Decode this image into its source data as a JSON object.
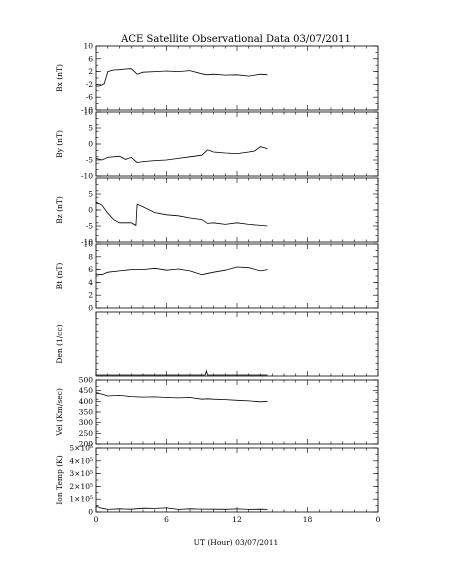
{
  "title": "ACE Satellite Observational Data   03/07/2011",
  "xlabel": "UT (Hour)  03/07/2011",
  "x_ticks": [
    "0",
    "6",
    "12",
    "18",
    "0"
  ],
  "chart_data": [
    {
      "type": "line",
      "ylabel": "Bx (nT)",
      "ylim": [
        -10,
        10
      ],
      "y_ticks": [
        "10",
        "6",
        "2",
        "-2",
        "-6",
        "-10"
      ],
      "y_tick_values": [
        10,
        6,
        2,
        -2,
        -6,
        -10
      ],
      "x": [
        0,
        0.3,
        0.7,
        1,
        1.5,
        2,
        2.5,
        3,
        3.5,
        4,
        5,
        6,
        7,
        8,
        9,
        9.5,
        10,
        11,
        12,
        13,
        14,
        14.6
      ],
      "values": [
        -2.5,
        -2.5,
        -1.8,
        2,
        2.5,
        2.6,
        2.8,
        2.9,
        1.2,
        1.8,
        2.0,
        2.2,
        2.0,
        2.3,
        1.3,
        1.0,
        1.2,
        0.9,
        1.0,
        0.6,
        1.2,
        1.0
      ]
    },
    {
      "type": "line",
      "ylabel": "By (nT)",
      "ylim": [
        -10,
        10
      ],
      "y_ticks": [
        "10",
        "5",
        "0",
        "-5",
        "-10"
      ],
      "y_tick_values": [
        10,
        5,
        0,
        -5,
        -10
      ],
      "x": [
        0,
        0.5,
        1,
        2,
        2.5,
        3,
        3.5,
        4,
        5,
        6,
        7,
        8,
        9,
        9.5,
        10,
        11,
        12,
        13,
        13.5,
        14,
        14.6
      ],
      "values": [
        -4.5,
        -5,
        -4.2,
        -3.8,
        -4.8,
        -4.2,
        -5.8,
        -5.5,
        -5.2,
        -5.0,
        -4.5,
        -4.0,
        -3.5,
        -1.8,
        -2.5,
        -2.8,
        -3.0,
        -2.5,
        -2.2,
        -0.8,
        -1.5
      ]
    },
    {
      "type": "line",
      "ylabel": "Bz (nT)",
      "ylim": [
        -10,
        10
      ],
      "y_ticks": [
        "5",
        "0",
        "-5",
        "-10"
      ],
      "y_tick_values": [
        5,
        0,
        -5,
        -10
      ],
      "x": [
        0,
        0.5,
        1,
        1.5,
        2,
        3,
        3.4,
        3.5,
        4,
        5,
        6,
        7,
        8,
        9,
        9.5,
        10,
        11,
        12,
        13,
        14,
        14.6
      ],
      "values": [
        2.5,
        1.5,
        -1,
        -3,
        -4,
        -4,
        -4.8,
        1.8,
        1.0,
        -0.8,
        -1.5,
        -1.8,
        -2.5,
        -3.0,
        -4.2,
        -4.0,
        -4.5,
        -4.0,
        -4.5,
        -4.8,
        -5.0
      ]
    },
    {
      "type": "line",
      "ylabel": "Bt (nT)",
      "ylim": [
        0,
        10
      ],
      "y_ticks": [
        "10",
        "8",
        "6",
        "4",
        "2",
        "0"
      ],
      "y_tick_values": [
        10,
        8,
        6,
        4,
        2,
        0
      ],
      "x": [
        0,
        0.5,
        1,
        2,
        3,
        4,
        5,
        6,
        7,
        8,
        9,
        10,
        11,
        12,
        13,
        14,
        14.6
      ],
      "values": [
        5.3,
        5.2,
        5.6,
        5.8,
        6.0,
        6.0,
        6.2,
        5.9,
        6.1,
        5.8,
        5.2,
        5.6,
        5.9,
        6.4,
        6.3,
        5.8,
        6.0
      ]
    },
    {
      "type": "line",
      "ylabel": "Den (1/cc)",
      "ylim": [
        0,
        50
      ],
      "y_ticks": [],
      "y_tick_values": [],
      "x": [
        0,
        2,
        4,
        6,
        8,
        9.3,
        9.4,
        9.5,
        10,
        12,
        14,
        14.6
      ],
      "values": [
        0.8,
        0.8,
        0.8,
        0.8,
        0.8,
        0.8,
        4,
        0.8,
        0.8,
        0.8,
        0.8,
        0.8
      ]
    },
    {
      "type": "line",
      "ylabel": "Vel (Km/sec)",
      "ylim": [
        200,
        500
      ],
      "y_ticks": [
        "500",
        "450",
        "400",
        "350",
        "300",
        "250",
        "200"
      ],
      "y_tick_values": [
        500,
        450,
        400,
        350,
        300,
        250,
        200
      ],
      "x": [
        0,
        0.5,
        1,
        2,
        3,
        4,
        5,
        6,
        7,
        8,
        9,
        9.5,
        10,
        11,
        12,
        13,
        14,
        14.6
      ],
      "values": [
        438,
        434,
        425,
        428,
        422,
        420,
        421,
        418,
        416,
        418,
        410,
        412,
        410,
        408,
        405,
        402,
        398,
        400
      ]
    },
    {
      "type": "line",
      "ylabel": "Ion Temp (K)",
      "ylim": [
        0,
        500000
      ],
      "y_ticks": [
        "5×10⁵",
        "4×10⁵",
        "3×10⁵",
        "2×10⁵",
        "1×10⁵",
        "0"
      ],
      "y_tick_values": [
        500000,
        400000,
        300000,
        200000,
        100000,
        0
      ],
      "x": [
        0,
        0.5,
        1,
        2,
        3,
        4,
        5,
        6,
        7,
        8,
        9,
        10,
        11,
        12,
        13,
        14,
        14.6
      ],
      "values": [
        45000,
        30000,
        20000,
        25000,
        22000,
        30000,
        28000,
        32000,
        20000,
        25000,
        23000,
        22000,
        21000,
        24000,
        20000,
        22000,
        20000
      ]
    }
  ]
}
